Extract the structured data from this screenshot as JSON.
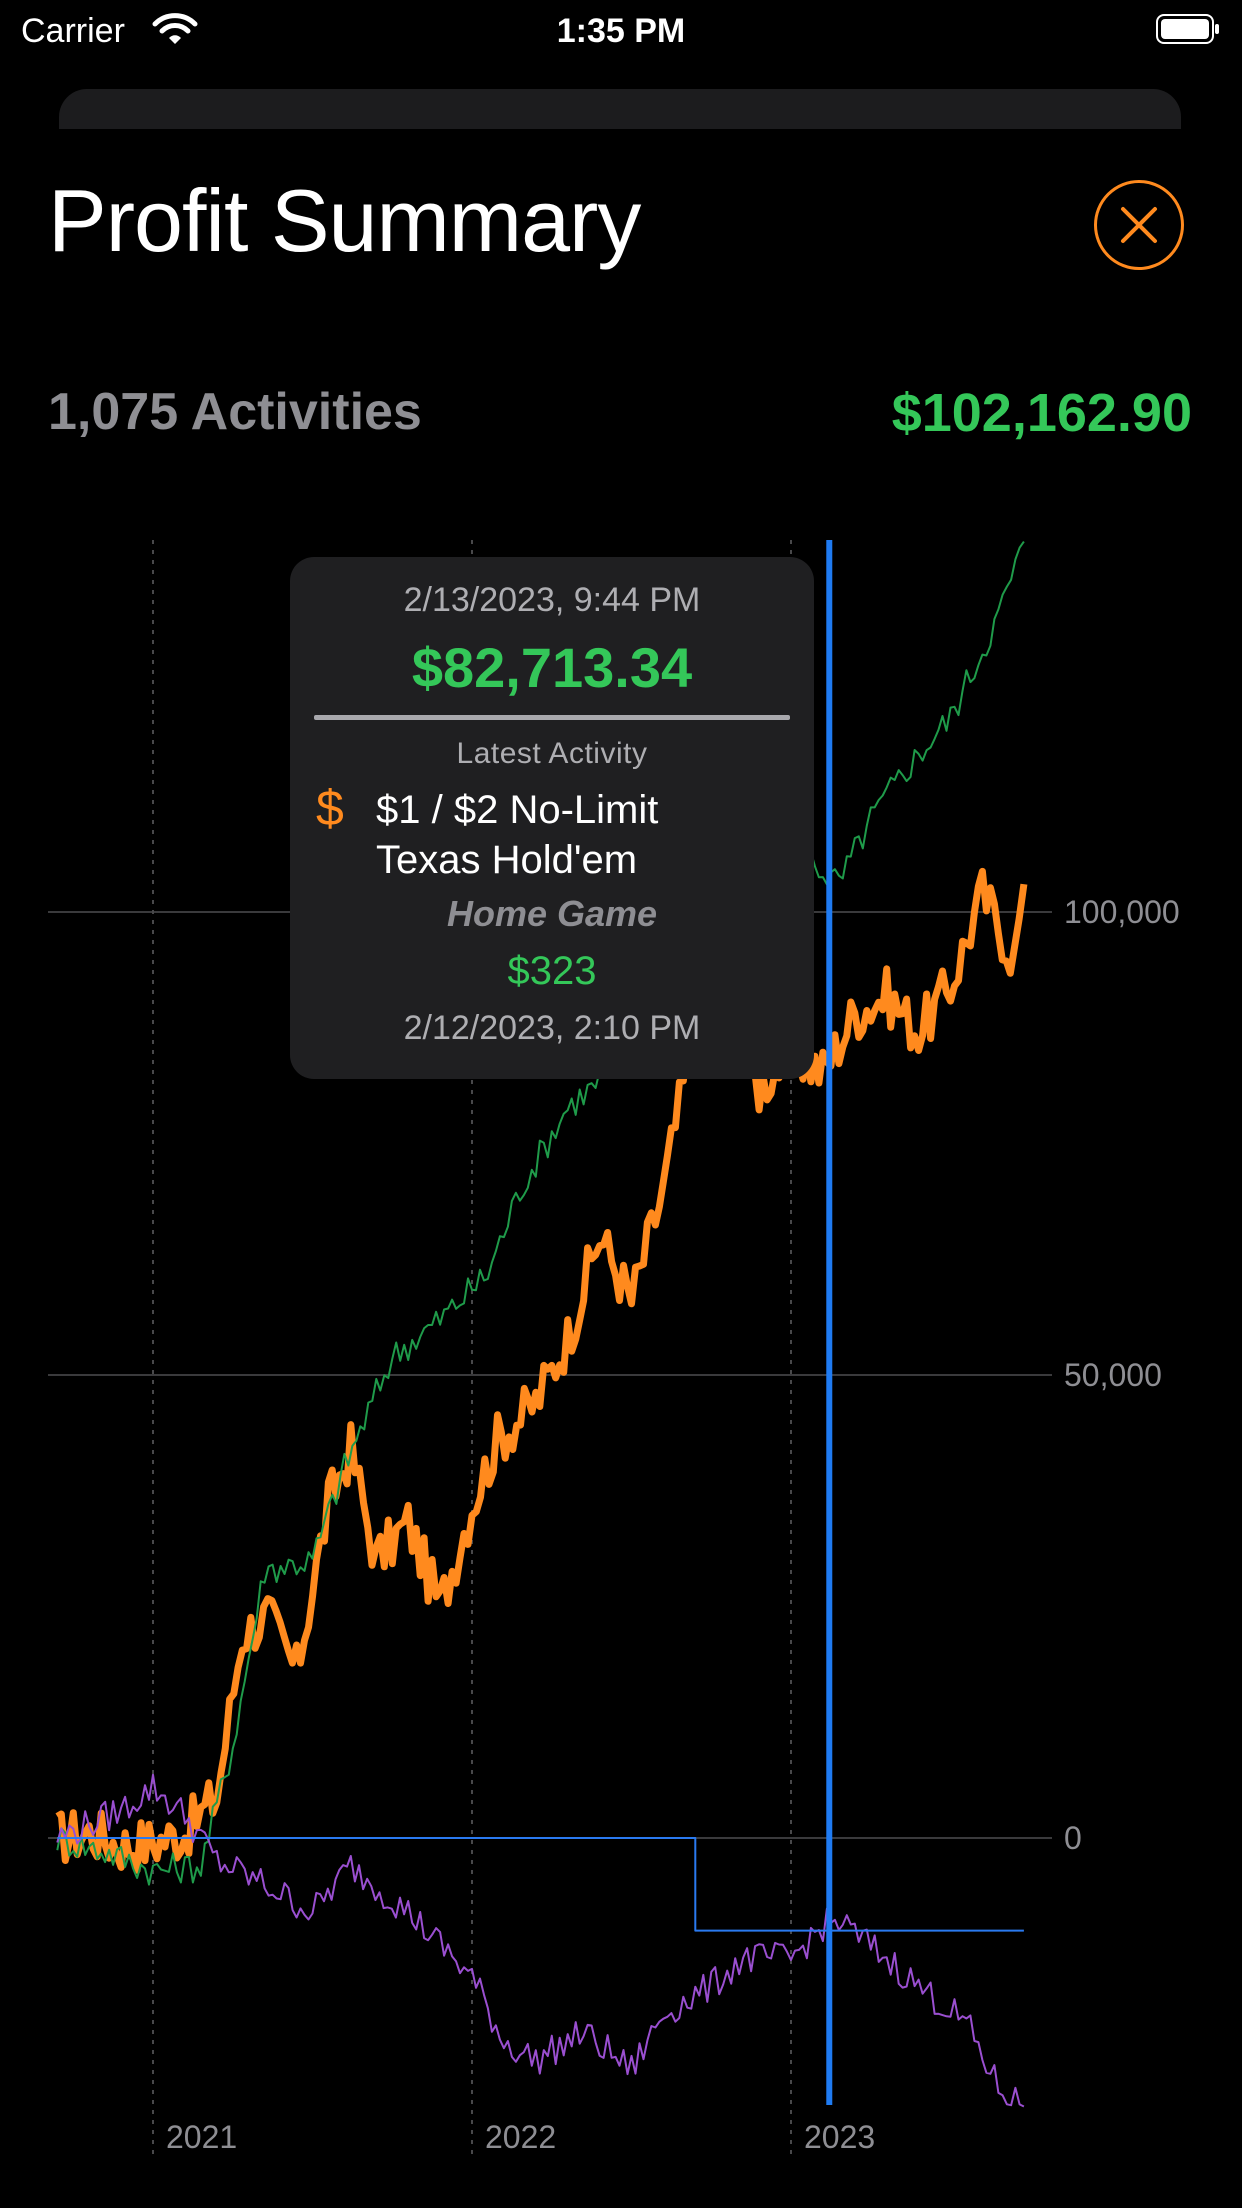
{
  "status_bar": {
    "carrier": "Carrier",
    "time": "1:35 PM"
  },
  "header": {
    "title": "Profit Summary",
    "close_icon": "close-circle-icon"
  },
  "summary": {
    "activities": "1,075 Activities",
    "total_profit": "$102,162.90"
  },
  "colors": {
    "profit_orange": "#ff8a1e",
    "positive_green": "#34c759",
    "series_green": "#1f9b4a",
    "series_purple": "#9a4fd0",
    "cursor_blue": "#1f7bf2",
    "thin_blue": "#2a7af0"
  },
  "tooltip": {
    "date": "2/13/2023, 9:44 PM",
    "value": "$82,713.34",
    "latest_label": "Latest Activity",
    "activity_icon": "dollar-icon",
    "game_line1": "$1 / $2 No-Limit",
    "game_line2": "Texas Hold'em",
    "location": "Home Game",
    "amount": "$323",
    "activity_time": "2/12/2023, 2:10 PM"
  },
  "chart_data": {
    "type": "line",
    "x_ticks": [
      "2021",
      "2022",
      "2023"
    ],
    "y_ticks": [
      "100,000",
      "50,000",
      "0"
    ],
    "y_tick_values": [
      100000,
      50000,
      0
    ],
    "ylim": [
      -30000,
      140000
    ],
    "x_range": [
      "2020-09",
      "2023-08"
    ],
    "cursor_date": "2023-02-13",
    "series": [
      {
        "color": "#ff8a1e",
        "x": [
          2020.7,
          2020.8,
          2020.9,
          2021.0,
          2021.1,
          2021.2,
          2021.28,
          2021.36,
          2021.45,
          2021.55,
          2021.62,
          2021.7,
          2021.8,
          2021.9,
          2022.0,
          2022.08,
          2022.2,
          2022.3,
          2022.4,
          2022.5,
          2022.6,
          2022.7,
          2022.8,
          2022.9,
          2023.0,
          2023.1,
          2023.2,
          2023.3,
          2023.4,
          2023.5,
          2023.6,
          2023.7,
          2023.73
        ],
        "y": [
          0,
          600,
          -800,
          -500,
          600,
          4500,
          22000,
          24000,
          18000,
          36000,
          42000,
          30000,
          34000,
          25000,
          36000,
          43000,
          47000,
          54000,
          65000,
          58000,
          70000,
          88000,
          88000,
          81000,
          85000,
          82713,
          89000,
          91000,
          87000,
          92000,
          102000,
          95000,
          103000
        ]
      },
      {
        "color": "#1f9b4a",
        "x": [
          2020.7,
          2020.85,
          2021.0,
          2021.15,
          2021.25,
          2021.35,
          2021.5,
          2021.6,
          2021.75,
          2021.9,
          2022.05,
          2022.15,
          2022.3,
          2022.45,
          2022.55,
          2022.65,
          2022.75,
          2022.85,
          2022.95,
          2023.05,
          2023.15,
          2023.25,
          2023.35,
          2023.5,
          2023.65,
          2023.73
        ],
        "y": [
          0,
          -1500,
          -3500,
          -3000,
          10000,
          29000,
          30000,
          40000,
          52000,
          56000,
          61000,
          70000,
          79000,
          83000,
          95000,
          99000,
          103000,
          107000,
          108000,
          106000,
          103000,
          110000,
          115000,
          121000,
          132000,
          140000
        ]
      },
      {
        "color": "#9a4fd0",
        "x": [
          2020.7,
          2020.9,
          2021.0,
          2021.1,
          2021.2,
          2021.35,
          2021.5,
          2021.62,
          2021.8,
          2022.0,
          2022.1,
          2022.2,
          2022.35,
          2022.5,
          2022.6,
          2022.75,
          2022.85,
          2023.0,
          2023.1,
          2023.15,
          2023.3,
          2023.4,
          2023.55,
          2023.65,
          2023.73
        ],
        "y": [
          0,
          3000,
          5500,
          2500,
          -2500,
          -5000,
          -8000,
          -3000,
          -8000,
          -15000,
          -22000,
          -24000,
          -21000,
          -25000,
          -19000,
          -16000,
          -13000,
          -13000,
          -9500,
          -9000,
          -13000,
          -16000,
          -20000,
          -27000,
          -29000
        ]
      },
      {
        "color": "#2a7af0",
        "x": [
          2020.7,
          2022.7,
          2022.7,
          2023.73
        ],
        "y": [
          0,
          0,
          -10000,
          -10000
        ]
      }
    ]
  }
}
